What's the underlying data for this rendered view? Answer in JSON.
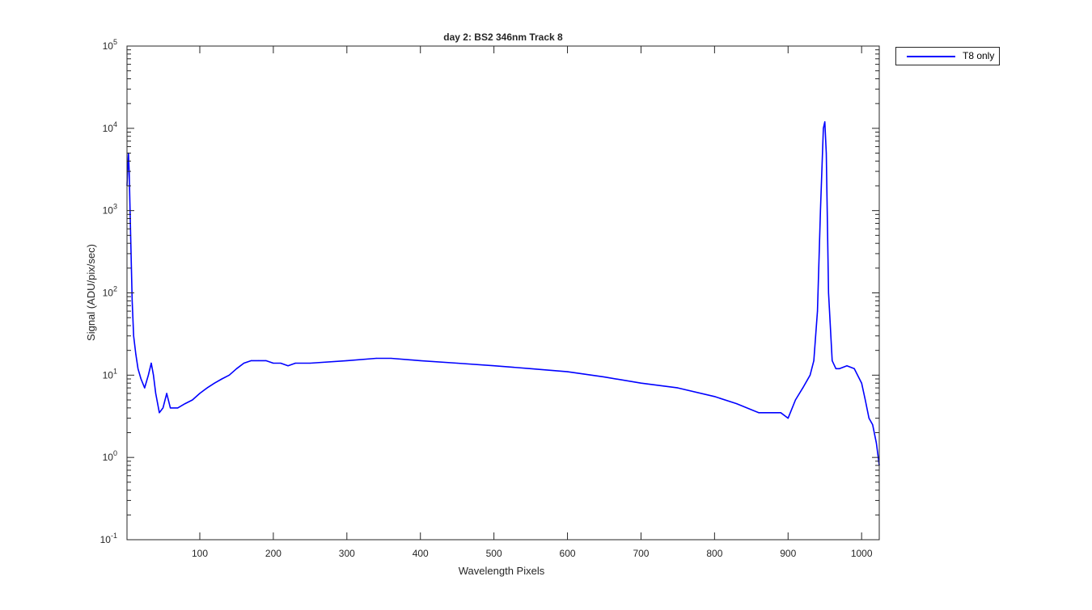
{
  "chart_data": {
    "type": "line",
    "title": "day 2: BS2  346nm  Track 8",
    "xlabel": "Wavelength Pixels",
    "ylabel": "Signal (ADU/pix/sec)",
    "xlim": [
      1,
      1024
    ],
    "ylim": [
      0.1,
      100000
    ],
    "yscale": "log",
    "x_ticks": [
      100,
      200,
      300,
      400,
      500,
      600,
      700,
      800,
      900,
      1000
    ],
    "y_ticks": [
      {
        "base": "10",
        "exp": "-1",
        "value": 0.1
      },
      {
        "base": "10",
        "exp": "0",
        "value": 1
      },
      {
        "base": "10",
        "exp": "1",
        "value": 10
      },
      {
        "base": "10",
        "exp": "2",
        "value": 100
      },
      {
        "base": "10",
        "exp": "3",
        "value": 1000
      },
      {
        "base": "10",
        "exp": "4",
        "value": 10000
      },
      {
        "base": "10",
        "exp": "5",
        "value": 100000
      }
    ],
    "grid": false,
    "legend_position": "outside-top-right",
    "series": [
      {
        "name": "T8 only",
        "color": "#0000ff",
        "x": [
          1,
          3,
          4,
          6,
          8,
          10,
          13,
          16,
          20,
          25,
          30,
          34,
          37,
          40,
          45,
          50,
          55,
          60,
          70,
          80,
          90,
          100,
          110,
          120,
          130,
          140,
          150,
          160,
          170,
          180,
          190,
          200,
          210,
          220,
          230,
          250,
          300,
          340,
          360,
          400,
          450,
          500,
          550,
          600,
          650,
          700,
          750,
          800,
          830,
          860,
          880,
          890,
          900,
          910,
          920,
          930,
          935,
          940,
          944,
          948,
          950,
          952,
          955,
          960,
          965,
          970,
          980,
          990,
          1000,
          1005,
          1010,
          1015,
          1020,
          1024
        ],
        "y": [
          2000,
          5000,
          3000,
          500,
          80,
          30,
          18,
          12,
          9,
          7,
          10,
          14,
          10,
          6,
          3.5,
          4,
          6,
          4,
          4,
          4.5,
          5,
          6,
          7,
          8,
          9,
          10,
          12,
          14,
          15,
          15,
          15,
          14,
          14,
          13,
          14,
          14,
          15,
          16,
          16,
          15,
          14,
          13,
          12,
          11,
          9.5,
          8,
          7,
          5.5,
          4.5,
          3.5,
          3.5,
          3.5,
          3,
          5,
          7,
          10,
          15,
          60,
          1000,
          10000,
          12000,
          5000,
          100,
          15,
          12,
          12,
          13,
          12,
          8,
          5,
          3,
          2.5,
          1.5,
          0.8
        ]
      }
    ]
  }
}
